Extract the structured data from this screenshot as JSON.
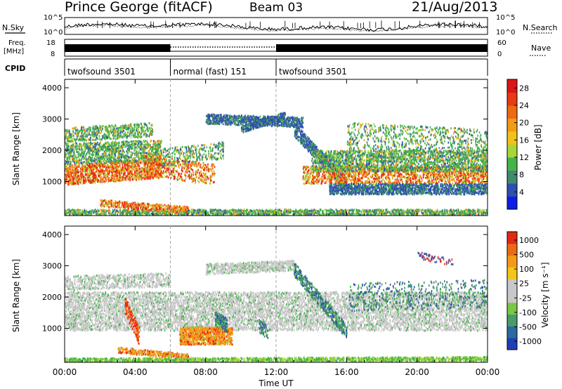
{
  "header": {
    "station": "Prince George (fitACF)",
    "beam": "Beam 03",
    "date": "21/Aug/2013"
  },
  "panels": {
    "nsky_label": "N.Sky",
    "nsearch_label": "N.Search",
    "noise_ticks_left": [
      "10^5",
      "10^0"
    ],
    "noise_ticks_right": [
      "10^5",
      "10^0"
    ],
    "freq_label_line1": "Freq.",
    "freq_label_line2": "[MHz]",
    "freq_ticks": [
      "18",
      "8"
    ],
    "nave_label": "Nave",
    "nave_ticks": [
      "60",
      "0"
    ],
    "cpid_label": "CPID"
  },
  "cpid_segments": [
    {
      "label": "twofsound 3501",
      "start_h": 0,
      "end_h": 6
    },
    {
      "label": "normal (fast) 151",
      "start_h": 6,
      "end_h": 12
    },
    {
      "label": "twofsound 3501",
      "start_h": 12,
      "end_h": 24
    }
  ],
  "chart_data": [
    {
      "type": "heatmap",
      "ylabel": "Slant Range [km]",
      "y_ticks": [
        "1000",
        "2000",
        "3000",
        "4000"
      ],
      "colorbar": {
        "label": "Power [dB]",
        "ticks": [
          "4",
          "8",
          "12",
          "16",
          "20",
          "24",
          "28"
        ],
        "colors": [
          "#0c1ee6",
          "#2f4fb0",
          "#3f8a70",
          "#44b348",
          "#a6d63a",
          "#f2c21b",
          "#f59a16",
          "#ee6a12",
          "#e83a14",
          "#dc1616"
        ]
      }
    },
    {
      "type": "heatmap",
      "ylabel": "Slant Range [km]",
      "y_ticks": [
        "1000",
        "2000",
        "3000",
        "4000"
      ],
      "colorbar": {
        "label": "Velocity [m s⁻¹]",
        "ticks": [
          "1000",
          "500",
          "100",
          "25",
          "-25",
          "-100",
          "-500",
          "-1000"
        ],
        "colors": [
          "#1f3fb4",
          "#2a6aa0",
          "#4a9a6a",
          "#7ac645",
          "#c8c8c8",
          "#c8c8c8",
          "#f5c518",
          "#f59a16",
          "#ee6a12",
          "#e12a14"
        ]
      }
    }
  ],
  "x_axis": {
    "ticks": [
      "00:00",
      "04:00",
      "08:00",
      "12:00",
      "16:00",
      "20:00",
      "00:00"
    ],
    "label": "Time UT"
  },
  "colors": {
    "red": "#e82c14",
    "orange": "#f59a16",
    "yellow_green": "#a6d63a",
    "green": "#44b348",
    "teal": "#3f8a70",
    "blue": "#2f4fb0",
    "grey": "#c8c8c8"
  }
}
